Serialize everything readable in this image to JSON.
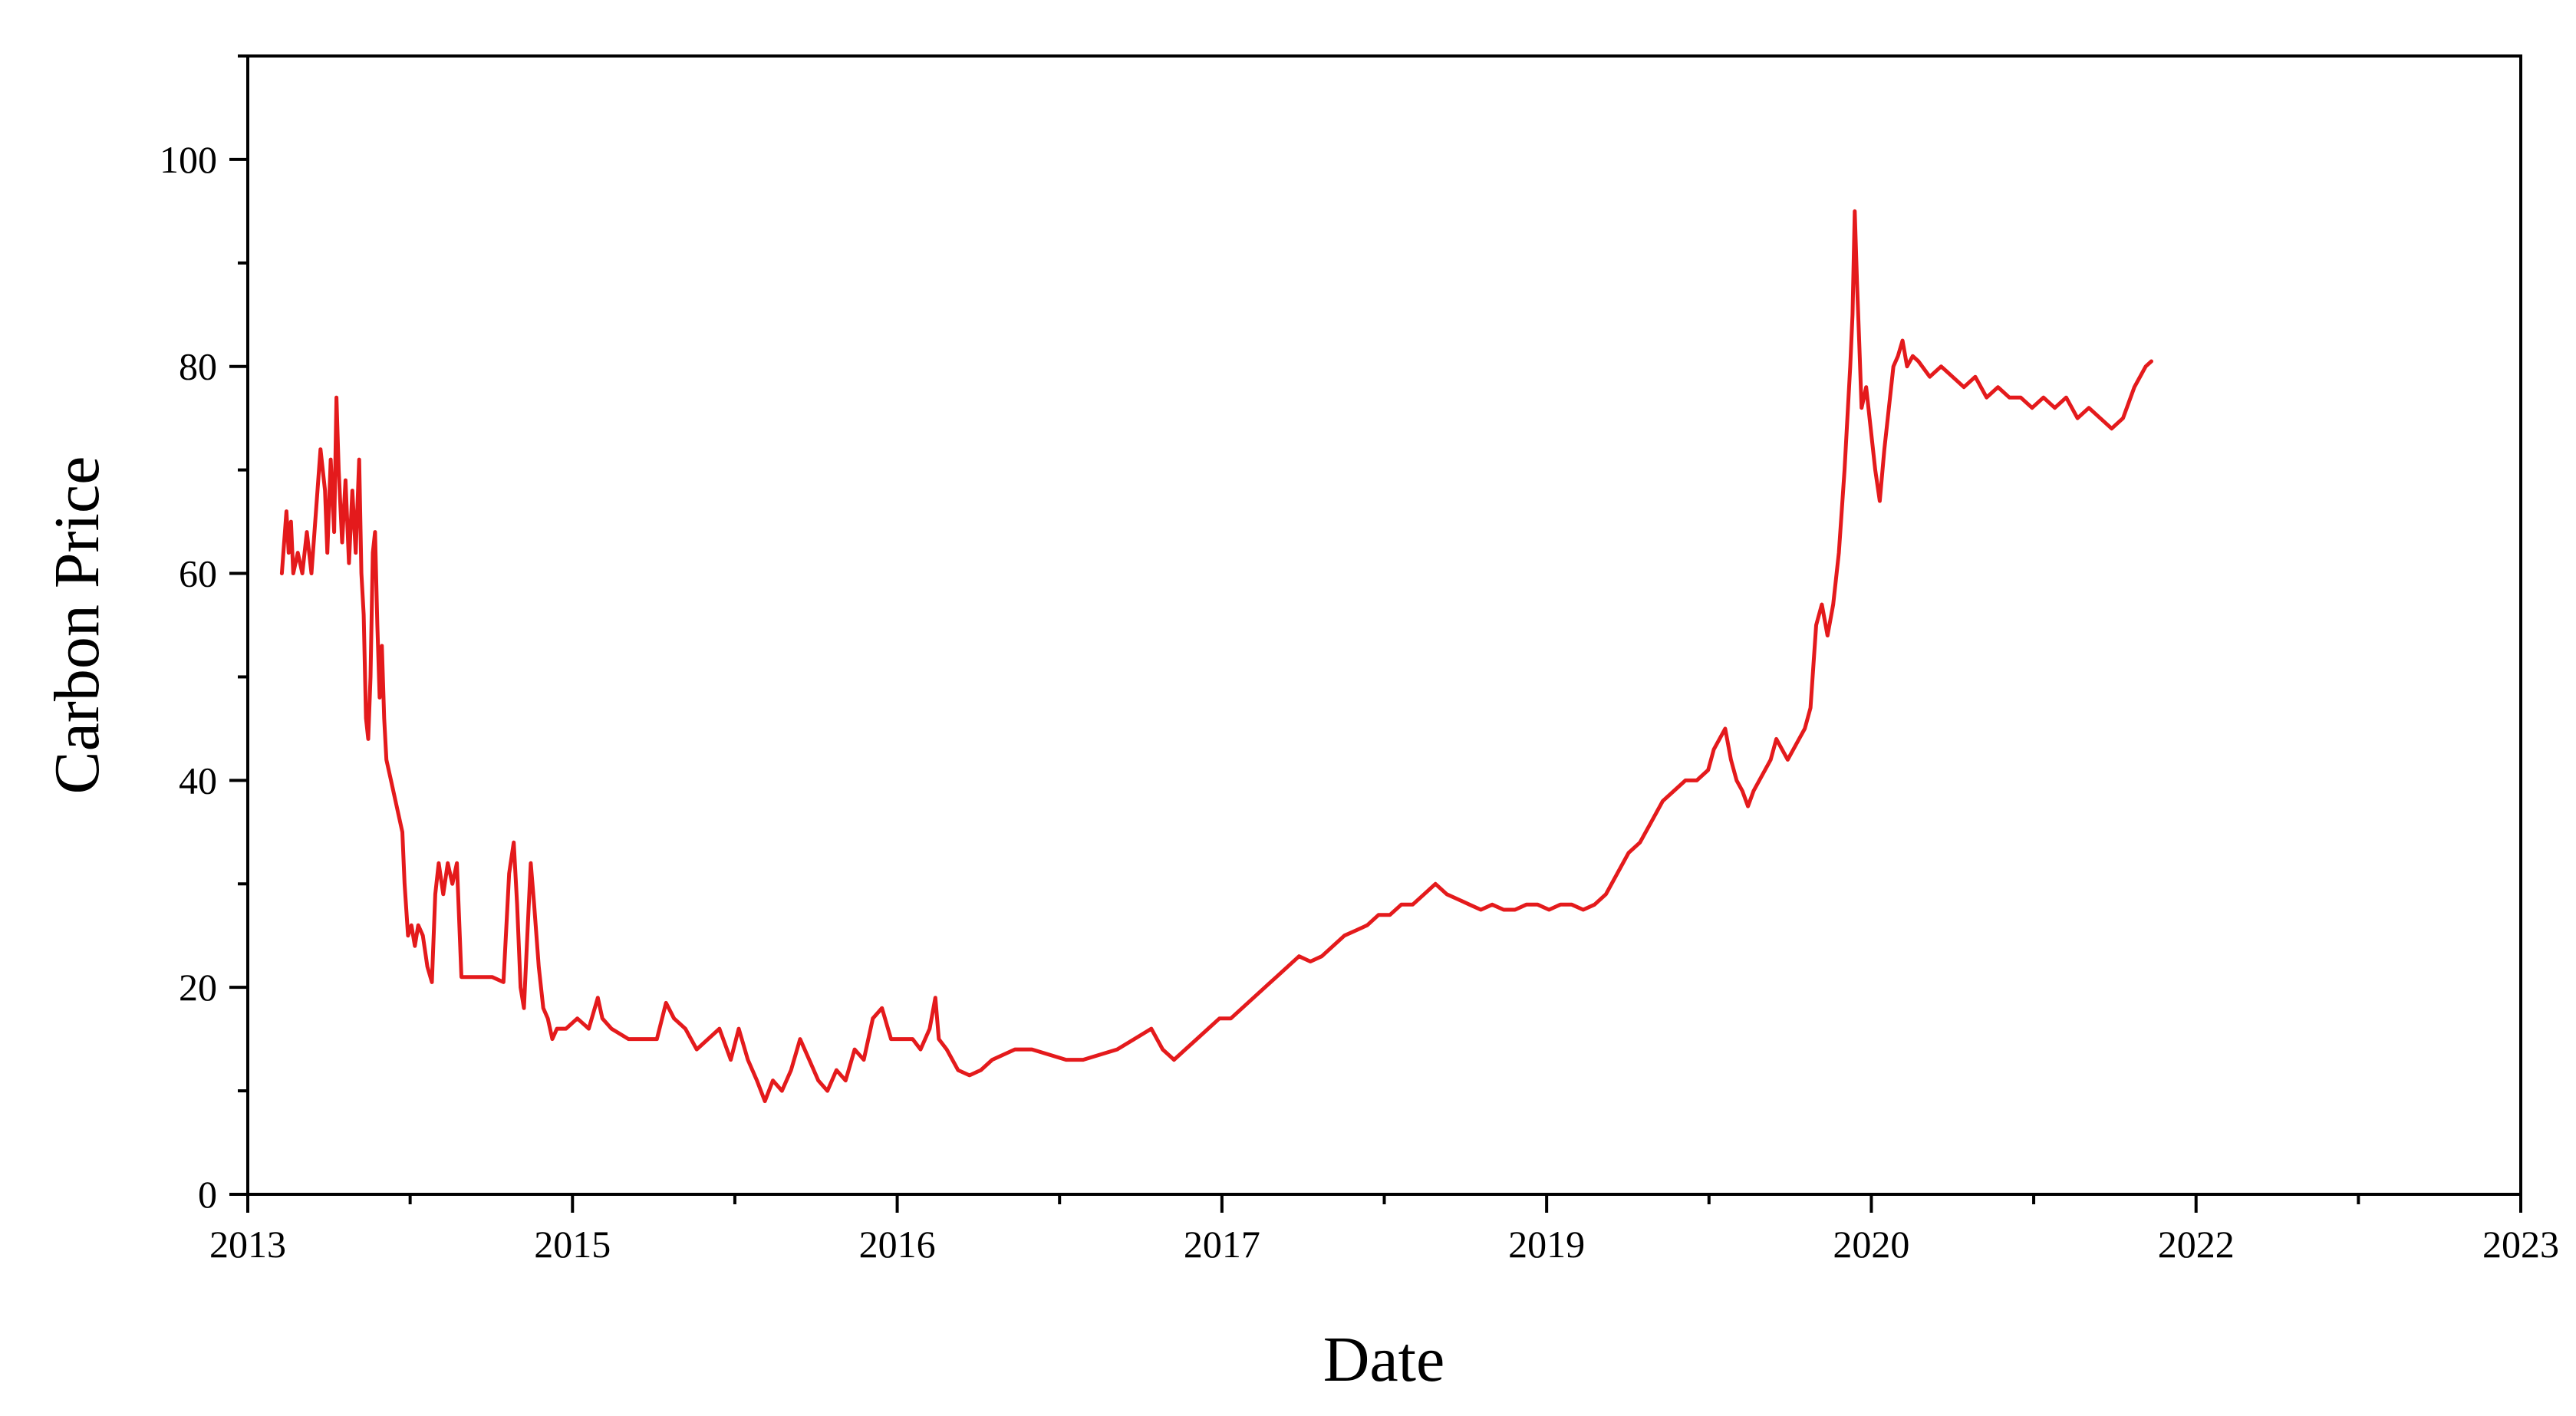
{
  "chart_data": {
    "type": "line",
    "title": "",
    "xlabel": "Date",
    "ylabel": "Carbon Price",
    "x_tick_labels": [
      "2013",
      "2015",
      "2016",
      "2017",
      "2019",
      "2020",
      "2022",
      "2023"
    ],
    "y_ticks": [
      0,
      20,
      40,
      60,
      80,
      100
    ],
    "xlim": [
      0,
      2.0
    ],
    "ylim": [
      0,
      110
    ],
    "grid": false,
    "legend": "none",
    "colors": {
      "series": "#e41a1c",
      "axis": "#000000"
    },
    "series": [
      {
        "name": "",
        "points": [
          [
            0.03,
            60
          ],
          [
            0.032,
            63
          ],
          [
            0.034,
            66
          ],
          [
            0.036,
            62
          ],
          [
            0.038,
            65
          ],
          [
            0.04,
            60
          ],
          [
            0.044,
            62
          ],
          [
            0.048,
            60
          ],
          [
            0.052,
            64
          ],
          [
            0.056,
            60
          ],
          [
            0.06,
            66
          ],
          [
            0.064,
            72
          ],
          [
            0.068,
            68
          ],
          [
            0.07,
            62
          ],
          [
            0.073,
            71
          ],
          [
            0.076,
            64
          ],
          [
            0.078,
            77
          ],
          [
            0.08,
            70
          ],
          [
            0.083,
            63
          ],
          [
            0.086,
            69
          ],
          [
            0.089,
            61
          ],
          [
            0.092,
            68
          ],
          [
            0.095,
            62
          ],
          [
            0.098,
            71
          ],
          [
            0.1,
            60
          ],
          [
            0.102,
            56
          ],
          [
            0.104,
            46
          ],
          [
            0.106,
            44
          ],
          [
            0.108,
            50
          ],
          [
            0.11,
            62
          ],
          [
            0.112,
            64
          ],
          [
            0.114,
            55
          ],
          [
            0.116,
            48
          ],
          [
            0.118,
            53
          ],
          [
            0.12,
            46
          ],
          [
            0.122,
            42
          ],
          [
            0.126,
            40
          ],
          [
            0.13,
            38
          ],
          [
            0.136,
            35
          ],
          [
            0.138,
            30
          ],
          [
            0.141,
            25
          ],
          [
            0.144,
            26
          ],
          [
            0.147,
            24
          ],
          [
            0.15,
            26
          ],
          [
            0.154,
            25
          ],
          [
            0.158,
            22
          ],
          [
            0.162,
            20.5
          ],
          [
            0.165,
            29
          ],
          [
            0.168,
            32
          ],
          [
            0.172,
            29
          ],
          [
            0.176,
            32
          ],
          [
            0.18,
            30
          ],
          [
            0.184,
            32
          ],
          [
            0.188,
            21
          ],
          [
            0.2,
            21
          ],
          [
            0.215,
            21
          ],
          [
            0.225,
            20.5
          ],
          [
            0.23,
            31
          ],
          [
            0.234,
            34
          ],
          [
            0.237,
            28
          ],
          [
            0.24,
            20
          ],
          [
            0.243,
            18
          ],
          [
            0.246,
            25
          ],
          [
            0.249,
            32
          ],
          [
            0.252,
            28
          ],
          [
            0.256,
            22
          ],
          [
            0.26,
            18
          ],
          [
            0.264,
            17
          ],
          [
            0.268,
            15
          ],
          [
            0.272,
            16
          ],
          [
            0.28,
            16
          ],
          [
            0.29,
            17
          ],
          [
            0.3,
            16
          ],
          [
            0.308,
            19
          ],
          [
            0.312,
            17
          ],
          [
            0.32,
            16
          ],
          [
            0.335,
            15
          ],
          [
            0.35,
            15
          ],
          [
            0.36,
            15
          ],
          [
            0.368,
            18.5
          ],
          [
            0.375,
            17
          ],
          [
            0.385,
            16
          ],
          [
            0.395,
            14
          ],
          [
            0.405,
            15
          ],
          [
            0.415,
            16
          ],
          [
            0.425,
            13
          ],
          [
            0.432,
            16
          ],
          [
            0.44,
            13
          ],
          [
            0.448,
            11
          ],
          [
            0.455,
            9
          ],
          [
            0.462,
            11
          ],
          [
            0.47,
            10
          ],
          [
            0.478,
            12
          ],
          [
            0.486,
            15
          ],
          [
            0.494,
            13
          ],
          [
            0.502,
            11
          ],
          [
            0.51,
            10
          ],
          [
            0.518,
            12
          ],
          [
            0.526,
            11
          ],
          [
            0.534,
            14
          ],
          [
            0.542,
            13
          ],
          [
            0.55,
            17
          ],
          [
            0.558,
            18
          ],
          [
            0.566,
            15
          ],
          [
            0.575,
            15
          ],
          [
            0.585,
            15
          ],
          [
            0.592,
            14
          ],
          [
            0.6,
            16
          ],
          [
            0.605,
            19
          ],
          [
            0.608,
            15
          ],
          [
            0.615,
            14
          ],
          [
            0.625,
            12
          ],
          [
            0.635,
            11.5
          ],
          [
            0.645,
            12
          ],
          [
            0.655,
            13
          ],
          [
            0.665,
            13.5
          ],
          [
            0.675,
            14
          ],
          [
            0.69,
            14
          ],
          [
            0.705,
            13.5
          ],
          [
            0.72,
            13
          ],
          [
            0.735,
            13
          ],
          [
            0.75,
            13.5
          ],
          [
            0.765,
            14
          ],
          [
            0.78,
            15
          ],
          [
            0.795,
            16
          ],
          [
            0.805,
            14
          ],
          [
            0.815,
            13
          ],
          [
            0.825,
            14
          ],
          [
            0.835,
            15
          ],
          [
            0.845,
            16
          ],
          [
            0.855,
            17
          ],
          [
            0.865,
            17
          ],
          [
            0.875,
            18
          ],
          [
            0.885,
            19
          ],
          [
            0.895,
            20
          ],
          [
            0.905,
            21
          ],
          [
            0.915,
            22
          ],
          [
            0.925,
            23
          ],
          [
            0.935,
            22.5
          ],
          [
            0.945,
            23
          ],
          [
            0.955,
            24
          ],
          [
            0.965,
            25
          ],
          [
            0.975,
            25.5
          ],
          [
            0.985,
            26
          ],
          [
            0.995,
            27
          ],
          [
            1.005,
            27
          ],
          [
            1.015,
            28
          ],
          [
            1.025,
            28
          ],
          [
            1.035,
            29
          ],
          [
            1.045,
            30
          ],
          [
            1.055,
            29
          ],
          [
            1.065,
            28.5
          ],
          [
            1.075,
            28
          ],
          [
            1.085,
            27.5
          ],
          [
            1.095,
            28
          ],
          [
            1.105,
            27.5
          ],
          [
            1.115,
            27.5
          ],
          [
            1.125,
            28
          ],
          [
            1.135,
            28
          ],
          [
            1.145,
            27.5
          ],
          [
            1.155,
            28
          ],
          [
            1.165,
            28
          ],
          [
            1.175,
            27.5
          ],
          [
            1.185,
            28
          ],
          [
            1.195,
            29
          ],
          [
            1.205,
            31
          ],
          [
            1.215,
            33
          ],
          [
            1.225,
            34
          ],
          [
            1.235,
            36
          ],
          [
            1.245,
            38
          ],
          [
            1.255,
            39
          ],
          [
            1.265,
            40
          ],
          [
            1.275,
            40
          ],
          [
            1.285,
            41
          ],
          [
            1.29,
            43
          ],
          [
            1.295,
            44
          ],
          [
            1.3,
            45
          ],
          [
            1.305,
            42
          ],
          [
            1.31,
            40
          ],
          [
            1.315,
            39
          ],
          [
            1.32,
            37.5
          ],
          [
            1.325,
            39
          ],
          [
            1.33,
            40
          ],
          [
            1.34,
            42
          ],
          [
            1.345,
            44
          ],
          [
            1.35,
            43
          ],
          [
            1.355,
            42
          ],
          [
            1.36,
            43
          ],
          [
            1.365,
            44
          ],
          [
            1.37,
            45
          ],
          [
            1.375,
            47
          ],
          [
            1.38,
            55
          ],
          [
            1.385,
            57
          ],
          [
            1.39,
            54
          ],
          [
            1.395,
            57
          ],
          [
            1.4,
            62
          ],
          [
            1.405,
            70
          ],
          [
            1.41,
            80
          ],
          [
            1.412,
            85
          ],
          [
            1.414,
            95
          ],
          [
            1.416,
            88
          ],
          [
            1.418,
            82
          ],
          [
            1.42,
            76
          ],
          [
            1.424,
            78
          ],
          [
            1.428,
            74
          ],
          [
            1.432,
            70
          ],
          [
            1.436,
            67
          ],
          [
            1.44,
            72
          ],
          [
            1.444,
            76
          ],
          [
            1.448,
            80
          ],
          [
            1.452,
            81
          ],
          [
            1.456,
            82.5
          ],
          [
            1.46,
            80
          ],
          [
            1.465,
            81
          ],
          [
            1.47,
            80.5
          ],
          [
            1.48,
            79
          ],
          [
            1.49,
            80
          ],
          [
            1.5,
            79
          ],
          [
            1.51,
            78
          ],
          [
            1.52,
            79
          ],
          [
            1.53,
            77
          ],
          [
            1.54,
            78
          ],
          [
            1.55,
            77
          ],
          [
            1.56,
            77
          ],
          [
            1.57,
            76
          ],
          [
            1.58,
            77
          ],
          [
            1.59,
            76
          ],
          [
            1.6,
            77
          ],
          [
            1.61,
            75
          ],
          [
            1.62,
            76
          ],
          [
            1.63,
            75
          ],
          [
            1.64,
            74
          ],
          [
            1.65,
            75
          ],
          [
            1.66,
            78
          ],
          [
            1.67,
            80
          ],
          [
            1.675,
            80.5
          ]
        ]
      }
    ]
  }
}
